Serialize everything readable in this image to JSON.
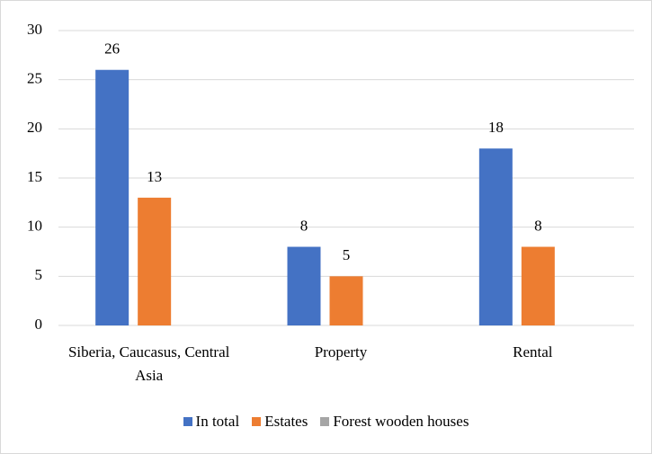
{
  "chart_data": {
    "type": "bar",
    "categories": [
      "Siberia, Caucasus, Central Asia",
      "Property",
      "Rental"
    ],
    "series": [
      {
        "name": "In total",
        "color": "#4472c4",
        "values": [
          26,
          8,
          18
        ]
      },
      {
        "name": "Estates",
        "color": "#ed7d31",
        "values": [
          13,
          5,
          8
        ]
      },
      {
        "name": "Forest wooden houses",
        "color": "#a5a5a5",
        "values": [
          null,
          null,
          null
        ]
      }
    ],
    "ylim": [
      0,
      30
    ],
    "yticks": [
      0,
      5,
      10,
      15,
      20,
      25,
      30
    ],
    "grid": true,
    "legend": "bottom"
  }
}
